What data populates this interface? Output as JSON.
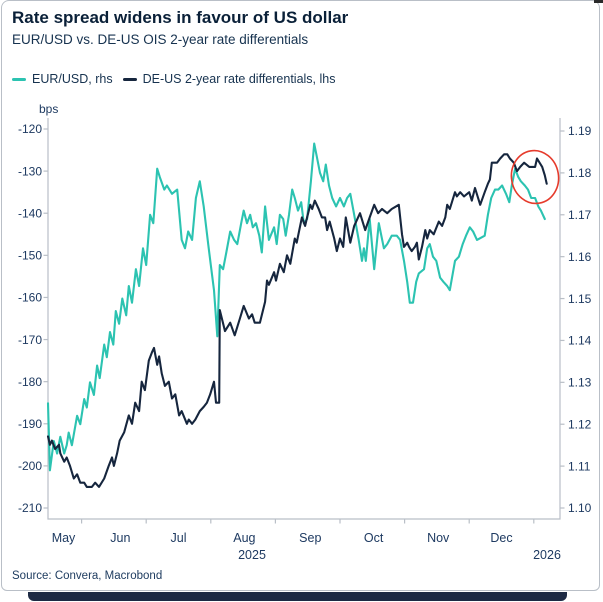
{
  "header": {
    "title": "Rate spread widens in favour of US dollar",
    "subtitle": "EUR/USD vs. DE-US OIS 2-year rate differentials"
  },
  "legend": [
    {
      "label": "EUR/USD, rhs",
      "color": "#2cc3b1"
    },
    {
      "label": "DE-US 2-year rate differentials, lhs",
      "color": "#16263e"
    }
  ],
  "source": "Source: Convera, Macrobond",
  "colors": {
    "eurusd_line": "#2cc3b1",
    "differential_line": "#16263e",
    "annotation_circle": "#e63b2c",
    "axis": "#b9bfc7",
    "text": "#1e3a61"
  },
  "chart_data": {
    "type": "line",
    "title": "Rate spread widens in favour of US dollar",
    "subtitle": "EUR/USD vs. DE-US OIS 2-year rate differentials",
    "x_unit": "months since 2025-05-01 (0 = May 1 2025, 8 = Jan 1 2026)",
    "x_axis": {
      "month_labels": [
        "May",
        "Jun",
        "Jul",
        "Aug",
        "Sep",
        "Oct",
        "Nov",
        "Dec"
      ],
      "year_labels": [
        "2025",
        "2026"
      ],
      "grid": false
    },
    "left_axis": {
      "unit": "bps",
      "ticks": [
        -120,
        -130,
        -140,
        -150,
        -160,
        -170,
        -180,
        -190,
        -200,
        -210
      ],
      "range": [
        -210,
        -120
      ]
    },
    "right_axis": {
      "ticks": [
        1.19,
        1.18,
        1.17,
        1.16,
        1.15,
        1.14,
        1.13,
        1.12,
        1.11,
        1.1
      ],
      "range": [
        1.1,
        1.19
      ]
    },
    "series": [
      {
        "name": "EUR/USD, rhs",
        "axis": "right",
        "color": "#2cc3b1",
        "points": [
          [
            0.48,
            1.125
          ],
          [
            0.51,
            1.109
          ],
          [
            0.57,
            1.116
          ],
          [
            0.62,
            1.113
          ],
          [
            0.67,
            1.117
          ],
          [
            0.73,
            1.113
          ],
          [
            0.77,
            1.115
          ],
          [
            0.8,
            1.118
          ],
          [
            0.85,
            1.115
          ],
          [
            0.93,
            1.122
          ],
          [
            0.98,
            1.12
          ],
          [
            1.04,
            1.126
          ],
          [
            1.08,
            1.124
          ],
          [
            1.13,
            1.13
          ],
          [
            1.19,
            1.127
          ],
          [
            1.24,
            1.134
          ],
          [
            1.28,
            1.131
          ],
          [
            1.35,
            1.139
          ],
          [
            1.39,
            1.136
          ],
          [
            1.44,
            1.142
          ],
          [
            1.49,
            1.139
          ],
          [
            1.53,
            1.147
          ],
          [
            1.58,
            1.144
          ],
          [
            1.63,
            1.15
          ],
          [
            1.69,
            1.146
          ],
          [
            1.73,
            1.153
          ],
          [
            1.78,
            1.149
          ],
          [
            1.84,
            1.157
          ],
          [
            1.89,
            1.153
          ],
          [
            1.95,
            1.162
          ],
          [
            2.0,
            1.158
          ],
          [
            2.06,
            1.17
          ],
          [
            2.11,
            1.168
          ],
          [
            2.17,
            1.181
          ],
          [
            2.21,
            1.179
          ],
          [
            2.28,
            1.176
          ],
          [
            2.32,
            1.177
          ],
          [
            2.4,
            1.175
          ],
          [
            2.48,
            1.176
          ],
          [
            2.55,
            1.164
          ],
          [
            2.6,
            1.162
          ],
          [
            2.65,
            1.166
          ],
          [
            2.71,
            1.164
          ],
          [
            2.77,
            1.174
          ],
          [
            2.83,
            1.178
          ],
          [
            2.89,
            1.172
          ],
          [
            2.96,
            1.163
          ],
          [
            3.0,
            1.158
          ],
          [
            3.05,
            1.152
          ],
          [
            3.1,
            1.141
          ],
          [
            3.14,
            1.158
          ],
          [
            3.19,
            1.157
          ],
          [
            3.24,
            1.161
          ],
          [
            3.3,
            1.166
          ],
          [
            3.36,
            1.164
          ],
          [
            3.41,
            1.163
          ],
          [
            3.47,
            1.168
          ],
          [
            3.51,
            1.171
          ],
          [
            3.56,
            1.168
          ],
          [
            3.61,
            1.17
          ],
          [
            3.65,
            1.167
          ],
          [
            3.7,
            1.168
          ],
          [
            3.75,
            1.165
          ],
          [
            3.79,
            1.161
          ],
          [
            3.84,
            1.172
          ],
          [
            3.9,
            1.164
          ],
          [
            3.98,
            1.167
          ],
          [
            4.02,
            1.163
          ],
          [
            4.07,
            1.17
          ],
          [
            4.12,
            1.169
          ],
          [
            4.16,
            1.165
          ],
          [
            4.21,
            1.17
          ],
          [
            4.26,
            1.176
          ],
          [
            4.3,
            1.174
          ],
          [
            4.35,
            1.171
          ],
          [
            4.4,
            1.173
          ],
          [
            4.44,
            1.168
          ],
          [
            4.49,
            1.169
          ],
          [
            4.55,
            1.178
          ],
          [
            4.6,
            1.187
          ],
          [
            4.64,
            1.184
          ],
          [
            4.69,
            1.18
          ],
          [
            4.74,
            1.178
          ],
          [
            4.78,
            1.182
          ],
          [
            4.83,
            1.177
          ],
          [
            4.88,
            1.174
          ],
          [
            4.94,
            1.172
          ],
          [
            5.0,
            1.174
          ],
          [
            5.06,
            1.172
          ],
          [
            5.11,
            1.174
          ],
          [
            5.16,
            1.175
          ],
          [
            5.22,
            1.17
          ],
          [
            5.29,
            1.164
          ],
          [
            5.34,
            1.159
          ],
          [
            5.37,
            1.162
          ],
          [
            5.4,
            1.159
          ],
          [
            5.46,
            1.169
          ],
          [
            5.53,
            1.157
          ],
          [
            5.6,
            1.168
          ],
          [
            5.68,
            1.162
          ],
          [
            5.73,
            1.163
          ],
          [
            5.8,
            1.165
          ],
          [
            5.88,
            1.165
          ],
          [
            5.93,
            1.164
          ],
          [
            5.99,
            1.159
          ],
          [
            6.04,
            1.154
          ],
          [
            6.08,
            1.149
          ],
          [
            6.13,
            1.149
          ],
          [
            6.18,
            1.154
          ],
          [
            6.22,
            1.156
          ],
          [
            6.3,
            1.157
          ],
          [
            6.35,
            1.162
          ],
          [
            6.39,
            1.163
          ],
          [
            6.44,
            1.16
          ],
          [
            6.49,
            1.159
          ],
          [
            6.55,
            1.155
          ],
          [
            6.6,
            1.154
          ],
          [
            6.66,
            1.153
          ],
          [
            6.7,
            1.152
          ],
          [
            6.78,
            1.159
          ],
          [
            6.84,
            1.16
          ],
          [
            6.9,
            1.163
          ],
          [
            6.95,
            1.165
          ],
          [
            7.01,
            1.167
          ],
          [
            7.06,
            1.166
          ],
          [
            7.12,
            1.164
          ],
          [
            7.24,
            1.165
          ],
          [
            7.29,
            1.17
          ],
          [
            7.34,
            1.174
          ],
          [
            7.4,
            1.176
          ],
          [
            7.45,
            1.176
          ],
          [
            7.51,
            1.177
          ],
          [
            7.57,
            1.175
          ],
          [
            7.62,
            1.173
          ],
          [
            7.66,
            1.177
          ],
          [
            7.71,
            1.181
          ],
          [
            7.76,
            1.179
          ],
          [
            7.8,
            1.178
          ],
          [
            7.86,
            1.177
          ],
          [
            7.91,
            1.176
          ],
          [
            7.96,
            1.174
          ],
          [
            8.02,
            1.174
          ],
          [
            8.07,
            1.172
          ],
          [
            8.11,
            1.171
          ],
          [
            8.17,
            1.169
          ]
        ]
      },
      {
        "name": "DE-US 2-year rate differentials, lhs",
        "axis": "left",
        "color": "#16263e",
        "points": [
          [
            0.48,
            -193
          ],
          [
            0.51,
            -195
          ],
          [
            0.54,
            -194
          ],
          [
            0.59,
            -196
          ],
          [
            0.65,
            -195
          ],
          [
            0.67,
            -197
          ],
          [
            0.73,
            -199
          ],
          [
            0.77,
            -198
          ],
          [
            0.82,
            -200
          ],
          [
            0.88,
            -203
          ],
          [
            0.93,
            -202
          ],
          [
            0.98,
            -204
          ],
          [
            1.04,
            -204
          ],
          [
            1.08,
            -205
          ],
          [
            1.16,
            -205
          ],
          [
            1.21,
            -204
          ],
          [
            1.27,
            -205
          ],
          [
            1.35,
            -203
          ],
          [
            1.42,
            -200
          ],
          [
            1.47,
            -198
          ],
          [
            1.5,
            -200
          ],
          [
            1.55,
            -197
          ],
          [
            1.59,
            -194
          ],
          [
            1.66,
            -192
          ],
          [
            1.73,
            -188
          ],
          [
            1.78,
            -190
          ],
          [
            1.83,
            -185
          ],
          [
            1.89,
            -187
          ],
          [
            1.93,
            -180
          ],
          [
            1.98,
            -182
          ],
          [
            2.04,
            -175
          ],
          [
            2.09,
            -173
          ],
          [
            2.12,
            -172
          ],
          [
            2.17,
            -176
          ],
          [
            2.2,
            -174
          ],
          [
            2.24,
            -178
          ],
          [
            2.29,
            -181
          ],
          [
            2.35,
            -180
          ],
          [
            2.4,
            -184
          ],
          [
            2.45,
            -183
          ],
          [
            2.51,
            -188
          ],
          [
            2.55,
            -187
          ],
          [
            2.63,
            -190
          ],
          [
            2.66,
            -189
          ],
          [
            2.71,
            -190
          ],
          [
            2.76,
            -189
          ],
          [
            2.83,
            -187
          ],
          [
            2.89,
            -186
          ],
          [
            2.94,
            -185
          ],
          [
            2.99,
            -183
          ],
          [
            3.05,
            -180
          ],
          [
            3.08,
            -185
          ],
          [
            3.13,
            -185
          ],
          [
            3.14,
            -163
          ],
          [
            3.22,
            -168
          ],
          [
            3.3,
            -166
          ],
          [
            3.37,
            -169
          ],
          [
            3.45,
            -165
          ],
          [
            3.51,
            -162
          ],
          [
            3.59,
            -165
          ],
          [
            3.64,
            -164
          ],
          [
            3.68,
            -166
          ],
          [
            3.76,
            -166
          ],
          [
            3.84,
            -161
          ],
          [
            3.87,
            -156
          ],
          [
            3.9,
            -157
          ],
          [
            3.98,
            -154
          ],
          [
            4.01,
            -156
          ],
          [
            4.07,
            -152
          ],
          [
            4.13,
            -154
          ],
          [
            4.18,
            -150
          ],
          [
            4.23,
            -152
          ],
          [
            4.3,
            -146
          ],
          [
            4.33,
            -147
          ],
          [
            4.41,
            -141
          ],
          [
            4.46,
            -143
          ],
          [
            4.49,
            -141
          ],
          [
            4.54,
            -138
          ],
          [
            4.57,
            -139
          ],
          [
            4.61,
            -137
          ],
          [
            4.67,
            -139
          ],
          [
            4.72,
            -141
          ],
          [
            4.77,
            -141
          ],
          [
            4.8,
            -144
          ],
          [
            4.84,
            -142
          ],
          [
            4.91,
            -146
          ],
          [
            4.95,
            -149
          ],
          [
            5.0,
            -146
          ],
          [
            5.05,
            -148
          ],
          [
            5.09,
            -141
          ],
          [
            5.16,
            -147
          ],
          [
            5.22,
            -143
          ],
          [
            5.31,
            -140
          ],
          [
            5.39,
            -144
          ],
          [
            5.46,
            -141
          ],
          [
            5.53,
            -138
          ],
          [
            5.59,
            -140
          ],
          [
            5.65,
            -139
          ],
          [
            5.73,
            -140
          ],
          [
            5.8,
            -139
          ],
          [
            5.91,
            -138
          ],
          [
            5.96,
            -145
          ],
          [
            5.99,
            -148
          ],
          [
            6.04,
            -147
          ],
          [
            6.07,
            -148
          ],
          [
            6.11,
            -149
          ],
          [
            6.16,
            -148
          ],
          [
            6.19,
            -147
          ],
          [
            6.22,
            -151
          ],
          [
            6.27,
            -148
          ],
          [
            6.32,
            -144
          ],
          [
            6.35,
            -146
          ],
          [
            6.39,
            -144
          ],
          [
            6.45,
            -145
          ],
          [
            6.53,
            -142
          ],
          [
            6.58,
            -143
          ],
          [
            6.63,
            -141
          ],
          [
            6.66,
            -138
          ],
          [
            6.7,
            -139
          ],
          [
            6.78,
            -135
          ],
          [
            6.81,
            -136
          ],
          [
            6.86,
            -135
          ],
          [
            6.92,
            -136
          ],
          [
            7.0,
            -135
          ],
          [
            7.04,
            -137
          ],
          [
            7.09,
            -134
          ],
          [
            7.17,
            -138
          ],
          [
            7.24,
            -135
          ],
          [
            7.29,
            -133
          ],
          [
            7.32,
            -132
          ],
          [
            7.35,
            -128
          ],
          [
            7.43,
            -128
          ],
          [
            7.48,
            -127
          ],
          [
            7.54,
            -126
          ],
          [
            7.59,
            -126
          ],
          [
            7.63,
            -127
          ],
          [
            7.69,
            -128
          ],
          [
            7.74,
            -130
          ],
          [
            7.79,
            -129
          ],
          [
            7.85,
            -128
          ],
          [
            7.93,
            -129
          ],
          [
            7.97,
            -129
          ],
          [
            8.02,
            -129
          ],
          [
            8.05,
            -127
          ],
          [
            8.13,
            -129
          ],
          [
            8.17,
            -131
          ],
          [
            8.2,
            -133
          ]
        ]
      }
    ],
    "annotation": {
      "type": "ellipse-highlight",
      "color": "#e63b2c",
      "note": "red circle highlighting the recent divergence at the right edge of the chart"
    }
  }
}
